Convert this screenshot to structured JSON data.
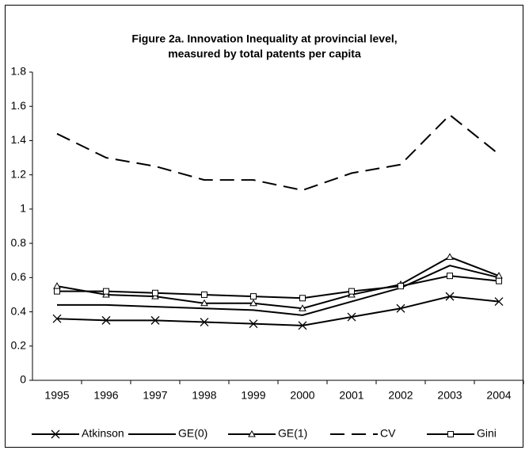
{
  "chart_data": {
    "type": "line",
    "title": [
      "Figure 2a. Innovation Inequality at provincial level,",
      "measured by total patents per capita"
    ],
    "categories": [
      "1995",
      "1996",
      "1997",
      "1998",
      "1999",
      "2000",
      "2001",
      "2002",
      "2003",
      "2004"
    ],
    "ylim": [
      0,
      1.8
    ],
    "yticks": [
      0,
      0.2,
      0.4,
      0.6,
      0.8,
      1,
      1.2,
      1.4,
      1.6,
      1.8
    ],
    "legend": "bottom",
    "series": [
      {
        "name": "Atkinson",
        "color": "#000000",
        "marker": "x",
        "dash": false,
        "values": [
          0.36,
          0.35,
          0.35,
          0.34,
          0.33,
          0.32,
          0.37,
          0.42,
          0.49,
          0.46
        ]
      },
      {
        "name": "GE(0)",
        "color": "#000000",
        "marker": "none",
        "dash": false,
        "values": [
          0.44,
          0.44,
          0.43,
          0.42,
          0.41,
          0.38,
          0.46,
          0.54,
          0.67,
          0.6
        ]
      },
      {
        "name": "GE(1)",
        "color": "#000000",
        "marker": "triangle",
        "dash": false,
        "values": [
          0.55,
          0.5,
          0.49,
          0.45,
          0.45,
          0.42,
          0.5,
          0.56,
          0.72,
          0.61
        ]
      },
      {
        "name": "CV",
        "color": "#000000",
        "marker": "none",
        "dash": true,
        "values": [
          1.44,
          1.3,
          1.25,
          1.17,
          1.17,
          1.11,
          1.21,
          1.26,
          1.55,
          1.32
        ]
      },
      {
        "name": "Gini",
        "color": "#000000",
        "marker": "square",
        "dash": false,
        "values": [
          0.52,
          0.52,
          0.51,
          0.5,
          0.49,
          0.48,
          0.52,
          0.55,
          0.61,
          0.58
        ]
      }
    ]
  }
}
